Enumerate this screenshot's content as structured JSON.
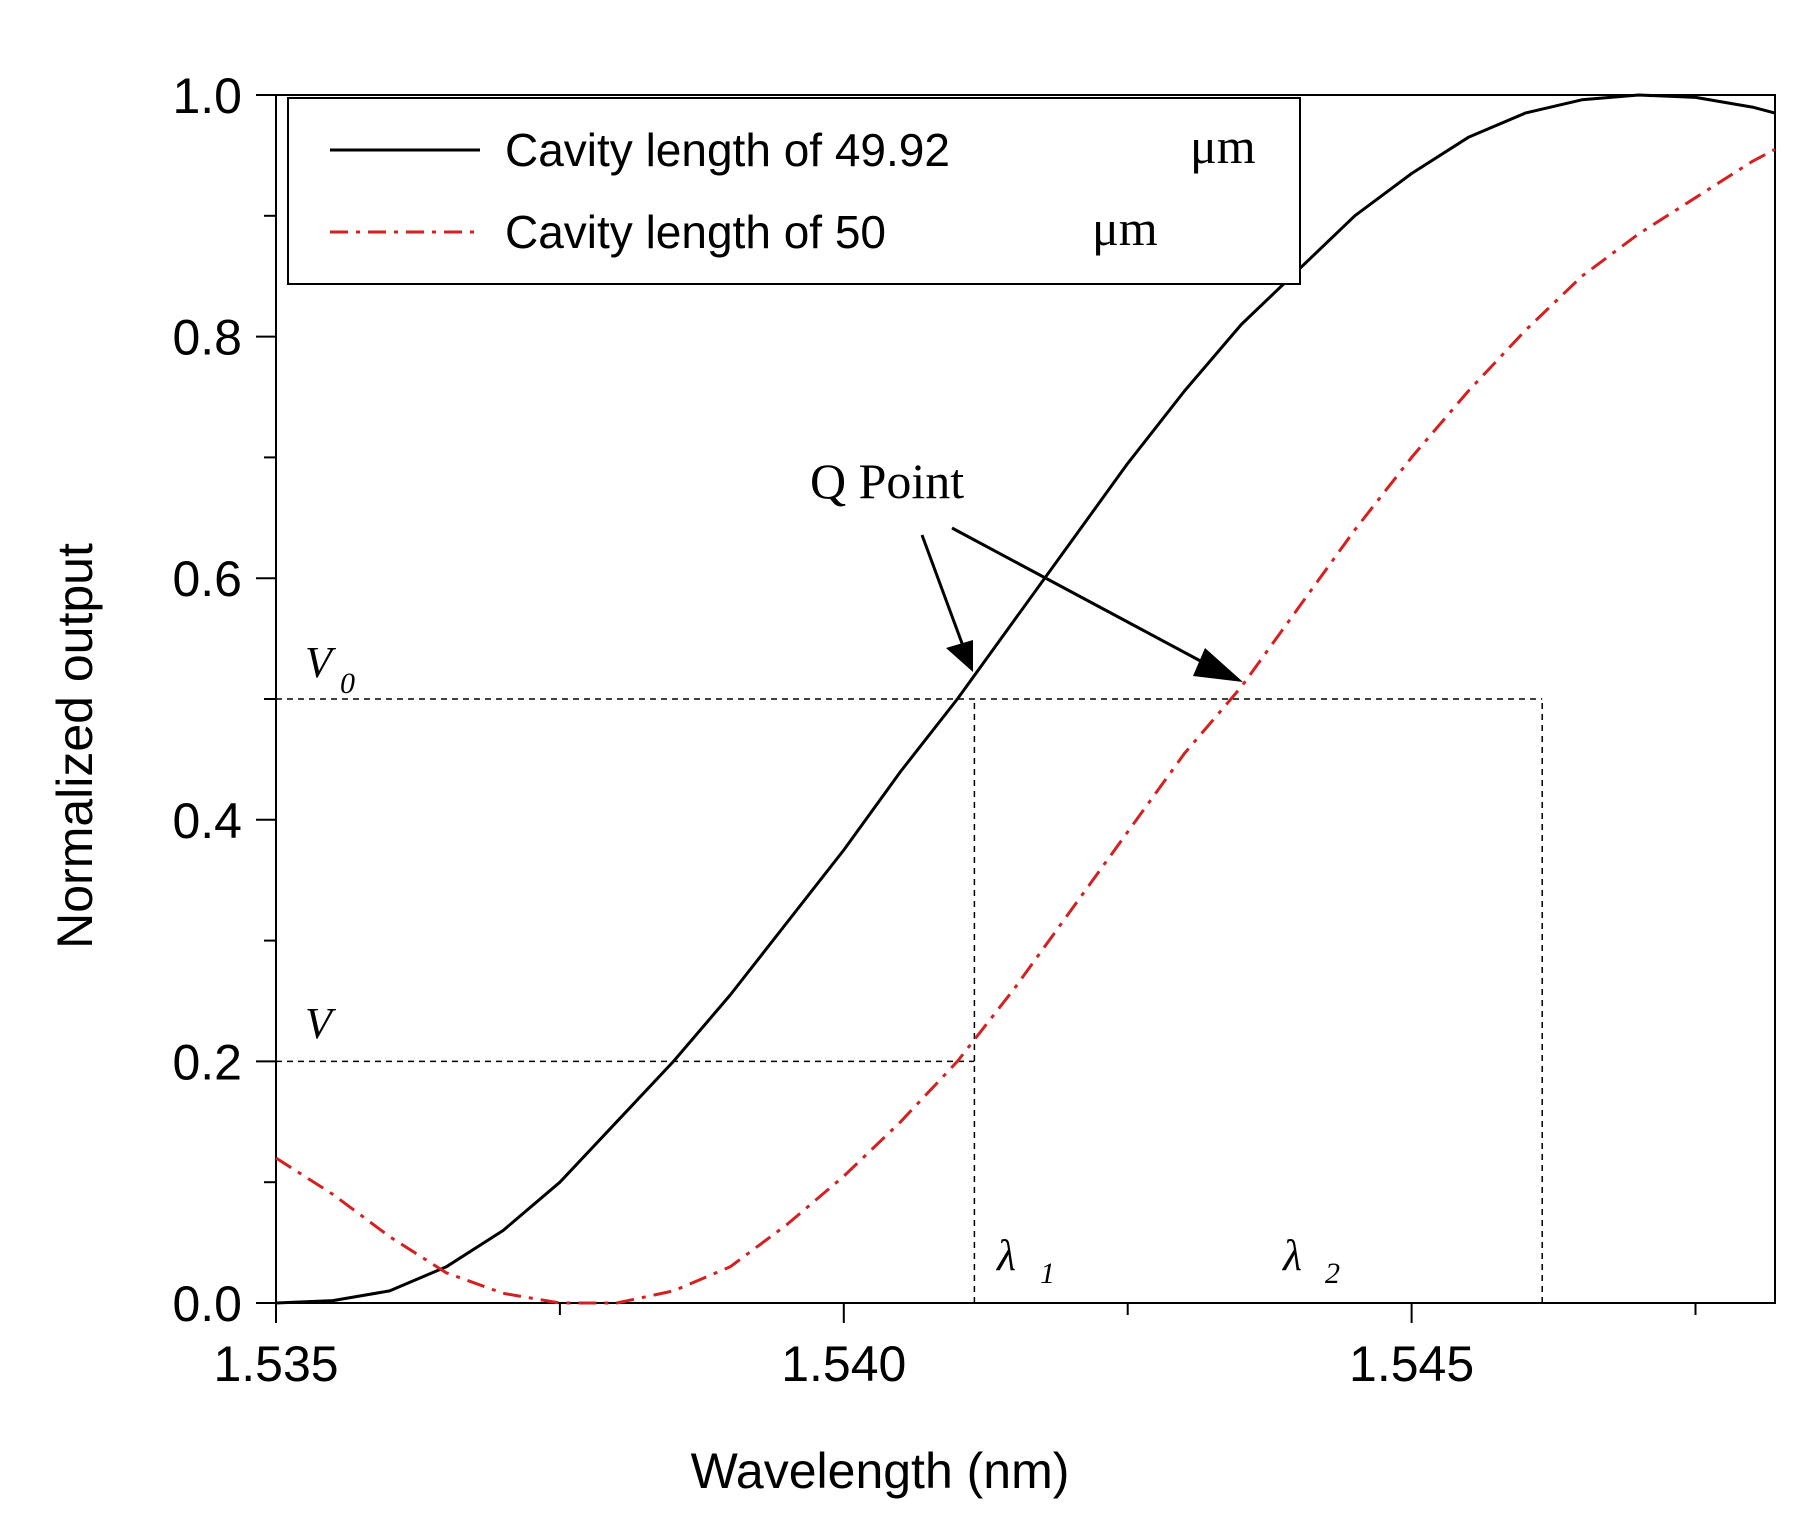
{
  "chart_data": {
    "type": "line",
    "xlabel": "Wavelength (nm)",
    "ylabel": "Normalized output",
    "xlim": [
      1.535,
      1.5482
    ],
    "ylim": [
      0.0,
      1.0
    ],
    "x_ticks": [
      1.535,
      1.54,
      1.545
    ],
    "x_tick_labels": [
      "1.535",
      "1.540",
      "1.545"
    ],
    "x_minor_ticks": [
      1.5375,
      1.5425,
      1.5475
    ],
    "y_ticks": [
      0.0,
      0.2,
      0.4,
      0.6,
      0.8,
      1.0
    ],
    "y_tick_labels": [
      "0.0",
      "0.2",
      "0.4",
      "0.6",
      "0.8",
      "1.0"
    ],
    "y_minor_ticks": [
      0.1,
      0.3,
      0.5,
      0.7,
      0.9
    ],
    "grid": false,
    "legend_position": "top-left",
    "series": [
      {
        "name": "Cavity length of 49.92",
        "unit": "μm",
        "style": "solid",
        "color": "#000000",
        "x": [
          1.535,
          1.5355,
          1.536,
          1.5365,
          1.537,
          1.5375,
          1.538,
          1.5385,
          1.539,
          1.5395,
          1.54,
          1.5405,
          1.541,
          1.5415,
          1.542,
          1.5425,
          1.543,
          1.5435,
          1.544,
          1.5445,
          1.545,
          1.5455,
          1.546,
          1.5465,
          1.547,
          1.5475,
          1.548,
          1.5482
        ],
        "y": [
          0.0,
          0.002,
          0.01,
          0.03,
          0.06,
          0.1,
          0.15,
          0.2,
          0.255,
          0.315,
          0.375,
          0.44,
          0.5,
          0.565,
          0.63,
          0.695,
          0.755,
          0.81,
          0.855,
          0.9,
          0.935,
          0.965,
          0.985,
          0.996,
          1.0,
          0.998,
          0.99,
          0.985
        ]
      },
      {
        "name": "Cavity length of 50",
        "unit": "μm",
        "style": "dash-dot",
        "color": "#d62020",
        "x": [
          1.535,
          1.5355,
          1.536,
          1.5365,
          1.537,
          1.5375,
          1.538,
          1.5385,
          1.539,
          1.5395,
          1.54,
          1.5405,
          1.541,
          1.5415,
          1.542,
          1.5425,
          1.543,
          1.5435,
          1.544,
          1.5445,
          1.545,
          1.5455,
          1.546,
          1.5465,
          1.547,
          1.5475,
          1.548,
          1.5482
        ],
        "y": [
          0.12,
          0.09,
          0.055,
          0.025,
          0.008,
          0.0,
          0.0,
          0.01,
          0.03,
          0.065,
          0.105,
          0.15,
          0.2,
          0.26,
          0.325,
          0.39,
          0.455,
          0.51,
          0.575,
          0.64,
          0.7,
          0.755,
          0.805,
          0.85,
          0.885,
          0.915,
          0.945,
          0.955
        ]
      }
    ],
    "reference_lines": [
      {
        "from": [
          1.535,
          0.5
        ],
        "to": [
          1.54615,
          0.5
        ]
      },
      {
        "from": [
          1.535,
          0.2
        ],
        "to": [
          1.54115,
          0.2
        ]
      },
      {
        "from": [
          1.54115,
          0.0
        ],
        "to": [
          1.54115,
          0.5
        ]
      },
      {
        "from": [
          1.54615,
          0.0
        ],
        "to": [
          1.54615,
          0.5
        ]
      }
    ],
    "annotations": {
      "q_point": "Q Point",
      "v0": "V",
      "v0_sub": "0",
      "v": "V",
      "lambda1": "λ",
      "lambda1_sub": "1",
      "lambda2": "λ",
      "lambda2_sub": "2"
    }
  }
}
